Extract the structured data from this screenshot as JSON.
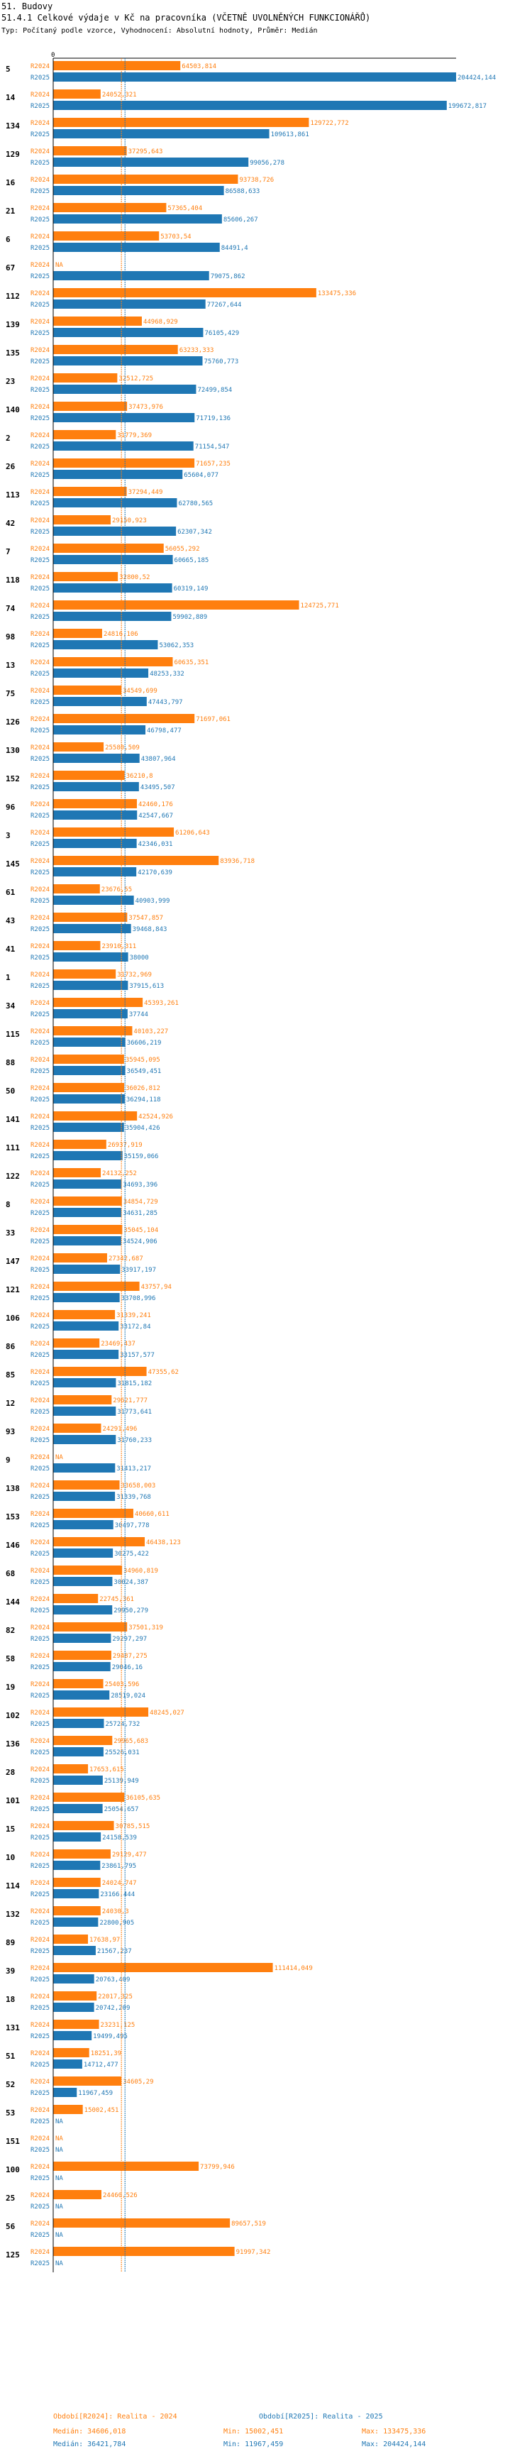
{
  "header": {
    "line1": "51. Budovy",
    "line2": "51.4.1 Celkové výdaje v Kč na pracovníka (VČETNĚ UVOLNĚNÝCH FUNKCIONÁŘŮ)",
    "line3": "Typ: Počítaný podle vzorce, Vyhodnocení: Absolutní hodnoty, Průměr: Medián"
  },
  "colors": {
    "r2024": "#ff7f0e",
    "r2025": "#1f77b4"
  },
  "chart_data": {
    "type": "bar",
    "orientation": "horizontal",
    "axis_zero_label": "0",
    "xlim": [
      0,
      204424.144
    ],
    "series": [
      {
        "name": "R2024",
        "label": "Období[R2024]: Realita - 2024"
      },
      {
        "name": "R2025",
        "label": "Období[R2025]: Realita - 2025"
      }
    ],
    "groups": [
      {
        "id": "5",
        "r2024": 64503.814,
        "r2024_label": "64503,814",
        "r2025": 204424.144,
        "r2025_label": "204424,144"
      },
      {
        "id": "14",
        "r2024": 24052.321,
        "r2024_label": "24052,321",
        "r2025": 199672.817,
        "r2025_label": "199672,817"
      },
      {
        "id": "134",
        "r2024": 129722.772,
        "r2024_label": "129722,772",
        "r2025": 109613.861,
        "r2025_label": "109613,861"
      },
      {
        "id": "129",
        "r2024": 37295.643,
        "r2024_label": "37295,643",
        "r2025": 99056.278,
        "r2025_label": "99056,278"
      },
      {
        "id": "16",
        "r2024": 93738.726,
        "r2024_label": "93738,726",
        "r2025": 86588.633,
        "r2025_label": "86588,633"
      },
      {
        "id": "21",
        "r2024": 57365.404,
        "r2024_label": "57365,404",
        "r2025": 85606.267,
        "r2025_label": "85606,267"
      },
      {
        "id": "6",
        "r2024": 53703.54,
        "r2024_label": "53703,54",
        "r2025": 84491.4,
        "r2025_label": "84491,4"
      },
      {
        "id": "67",
        "r2024": null,
        "r2024_label": "NA",
        "r2025": 79075.862,
        "r2025_label": "79075,862"
      },
      {
        "id": "112",
        "r2024": 133475.336,
        "r2024_label": "133475,336",
        "r2025": 77267.644,
        "r2025_label": "77267,644"
      },
      {
        "id": "139",
        "r2024": 44968.929,
        "r2024_label": "44968,929",
        "r2025": 76105.429,
        "r2025_label": "76105,429"
      },
      {
        "id": "135",
        "r2024": 63233.333,
        "r2024_label": "63233,333",
        "r2025": 75760.773,
        "r2025_label": "75760,773"
      },
      {
        "id": "23",
        "r2024": 32512.725,
        "r2024_label": "32512,725",
        "r2025": 72499.854,
        "r2025_label": "72499,854"
      },
      {
        "id": "140",
        "r2024": 37473.976,
        "r2024_label": "37473,976",
        "r2025": 71719.136,
        "r2025_label": "71719,136"
      },
      {
        "id": "2",
        "r2024": 31779.369,
        "r2024_label": "31779,369",
        "r2025": 71154.547,
        "r2025_label": "71154,547"
      },
      {
        "id": "26",
        "r2024": 71657.235,
        "r2024_label": "71657,235",
        "r2025": 65604.077,
        "r2025_label": "65604,077"
      },
      {
        "id": "113",
        "r2024": 37294.449,
        "r2024_label": "37294,449",
        "r2025": 62780.565,
        "r2025_label": "62780,565"
      },
      {
        "id": "42",
        "r2024": 29150.923,
        "r2024_label": "29150,923",
        "r2025": 62307.342,
        "r2025_label": "62307,342"
      },
      {
        "id": "7",
        "r2024": 56055.292,
        "r2024_label": "56055,292",
        "r2025": 60665.185,
        "r2025_label": "60665,185"
      },
      {
        "id": "118",
        "r2024": 32800.52,
        "r2024_label": "32800,52",
        "r2025": 60319.149,
        "r2025_label": "60319,149"
      },
      {
        "id": "74",
        "r2024": 124725.771,
        "r2024_label": "124725,771",
        "r2025": 59902.889,
        "r2025_label": "59902,889"
      },
      {
        "id": "98",
        "r2024": 24816.106,
        "r2024_label": "24816,106",
        "r2025": 53062.353,
        "r2025_label": "53062,353"
      },
      {
        "id": "13",
        "r2024": 60635.351,
        "r2024_label": "60635,351",
        "r2025": 48253.332,
        "r2025_label": "48253,332"
      },
      {
        "id": "75",
        "r2024": 34549.699,
        "r2024_label": "34549,699",
        "r2025": 47443.797,
        "r2025_label": "47443,797"
      },
      {
        "id": "126",
        "r2024": 71697.061,
        "r2024_label": "71697,061",
        "r2025": 46798.477,
        "r2025_label": "46798,477"
      },
      {
        "id": "130",
        "r2024": 25580.509,
        "r2024_label": "25580,509",
        "r2025": 43807.964,
        "r2025_label": "43807,964"
      },
      {
        "id": "152",
        "r2024": 36210.8,
        "r2024_label": "36210,8",
        "r2025": 43495.507,
        "r2025_label": "43495,507"
      },
      {
        "id": "96",
        "r2024": 42460.176,
        "r2024_label": "42460,176",
        "r2025": 42547.667,
        "r2025_label": "42547,667"
      },
      {
        "id": "3",
        "r2024": 61206.643,
        "r2024_label": "61206,643",
        "r2025": 42346.031,
        "r2025_label": "42346,031"
      },
      {
        "id": "145",
        "r2024": 83936.718,
        "r2024_label": "83936,718",
        "r2025": 42170.639,
        "r2025_label": "42170,639"
      },
      {
        "id": "61",
        "r2024": 23676.55,
        "r2024_label": "23676,55",
        "r2025": 40903.999,
        "r2025_label": "40903,999"
      },
      {
        "id": "43",
        "r2024": 37547.857,
        "r2024_label": "37547,857",
        "r2025": 39468.843,
        "r2025_label": "39468,843"
      },
      {
        "id": "41",
        "r2024": 23910.311,
        "r2024_label": "23910,311",
        "r2025": 38000,
        "r2025_label": "38000"
      },
      {
        "id": "1",
        "r2024": 31732.969,
        "r2024_label": "31732,969",
        "r2025": 37915.613,
        "r2025_label": "37915,613"
      },
      {
        "id": "34",
        "r2024": 45393.261,
        "r2024_label": "45393,261",
        "r2025": 37744,
        "r2025_label": "37744"
      },
      {
        "id": "115",
        "r2024": 40103.227,
        "r2024_label": "40103,227",
        "r2025": 36606.219,
        "r2025_label": "36606,219"
      },
      {
        "id": "88",
        "r2024": 35945.095,
        "r2024_label": "35945,095",
        "r2025": 36549.451,
        "r2025_label": "36549,451"
      },
      {
        "id": "50",
        "r2024": 36026.812,
        "r2024_label": "36026,812",
        "r2025": 36294.118,
        "r2025_label": "36294,118"
      },
      {
        "id": "141",
        "r2024": 42524.926,
        "r2024_label": "42524,926",
        "r2025": 35904.426,
        "r2025_label": "35904,426"
      },
      {
        "id": "111",
        "r2024": 26937.919,
        "r2024_label": "26937,919",
        "r2025": 35159.066,
        "r2025_label": "35159,066"
      },
      {
        "id": "122",
        "r2024": 24132.252,
        "r2024_label": "24132,252",
        "r2025": 34693.396,
        "r2025_label": "34693,396"
      },
      {
        "id": "8",
        "r2024": 34854.729,
        "r2024_label": "34854,729",
        "r2025": 34631.285,
        "r2025_label": "34631,285"
      },
      {
        "id": "33",
        "r2024": 35045.104,
        "r2024_label": "35045,104",
        "r2025": 34524.906,
        "r2025_label": "34524,906"
      },
      {
        "id": "147",
        "r2024": 27342.687,
        "r2024_label": "27342,687",
        "r2025": 33917.197,
        "r2025_label": "33917,197"
      },
      {
        "id": "121",
        "r2024": 43757.94,
        "r2024_label": "43757,94",
        "r2025": 33708.996,
        "r2025_label": "33708,996"
      },
      {
        "id": "106",
        "r2024": 31339.241,
        "r2024_label": "31339,241",
        "r2025": 33172.84,
        "r2025_label": "33172,84"
      },
      {
        "id": "86",
        "r2024": 23469.437,
        "r2024_label": "23469,437",
        "r2025": 33157.577,
        "r2025_label": "33157,577"
      },
      {
        "id": "85",
        "r2024": 47355.62,
        "r2024_label": "47355,62",
        "r2025": 31815.182,
        "r2025_label": "31815,182"
      },
      {
        "id": "12",
        "r2024": 29621.777,
        "r2024_label": "29621,777",
        "r2025": 31773.641,
        "r2025_label": "31773,641"
      },
      {
        "id": "93",
        "r2024": 24291.496,
        "r2024_label": "24291,496",
        "r2025": 31760.233,
        "r2025_label": "31760,233"
      },
      {
        "id": "9",
        "r2024": null,
        "r2024_label": "NA",
        "r2025": 31413.217,
        "r2025_label": "31413,217"
      },
      {
        "id": "138",
        "r2024": 33658.003,
        "r2024_label": "33658,003",
        "r2025": 31339.768,
        "r2025_label": "31339,768"
      },
      {
        "id": "153",
        "r2024": 40660.611,
        "r2024_label": "40660,611",
        "r2025": 30497.778,
        "r2025_label": "30497,778"
      },
      {
        "id": "146",
        "r2024": 46438.123,
        "r2024_label": "46438,123",
        "r2025": 30275.422,
        "r2025_label": "30275,422"
      },
      {
        "id": "68",
        "r2024": 34960.819,
        "r2024_label": "34960,819",
        "r2025": 30024.387,
        "r2025_label": "30024,387"
      },
      {
        "id": "144",
        "r2024": 22745.361,
        "r2024_label": "22745,361",
        "r2025": 29950.279,
        "r2025_label": "29950,279"
      },
      {
        "id": "82",
        "r2024": 37501.319,
        "r2024_label": "37501,319",
        "r2025": 29297.297,
        "r2025_label": "29297,297"
      },
      {
        "id": "58",
        "r2024": 29487.275,
        "r2024_label": "29487,275",
        "r2025": 29046.16,
        "r2025_label": "29046,16"
      },
      {
        "id": "19",
        "r2024": 25403.596,
        "r2024_label": "25403,596",
        "r2025": 28519.024,
        "r2025_label": "28519,024"
      },
      {
        "id": "102",
        "r2024": 48245.027,
        "r2024_label": "48245,027",
        "r2025": 25724.732,
        "r2025_label": "25724,732"
      },
      {
        "id": "136",
        "r2024": 29965.683,
        "r2024_label": "29965,683",
        "r2025": 25526.031,
        "r2025_label": "25526,031"
      },
      {
        "id": "28",
        "r2024": 17653.615,
        "r2024_label": "17653,615",
        "r2025": 25139.949,
        "r2025_label": "25139,949"
      },
      {
        "id": "101",
        "r2024": 36105.635,
        "r2024_label": "36105,635",
        "r2025": 25054.657,
        "r2025_label": "25054,657"
      },
      {
        "id": "15",
        "r2024": 30785.515,
        "r2024_label": "30785,515",
        "r2025": 24158.539,
        "r2025_label": "24158,539"
      },
      {
        "id": "10",
        "r2024": 29129.477,
        "r2024_label": "29129,477",
        "r2025": 23861.795,
        "r2025_label": "23861,795"
      },
      {
        "id": "114",
        "r2024": 24024.747,
        "r2024_label": "24024,747",
        "r2025": 23166.444,
        "r2025_label": "23166,444"
      },
      {
        "id": "132",
        "r2024": 24030.3,
        "r2024_label": "24030,3",
        "r2025": 22800.905,
        "r2025_label": "22800,905"
      },
      {
        "id": "89",
        "r2024": 17638.97,
        "r2024_label": "17638,97",
        "r2025": 21567.237,
        "r2025_label": "21567,237"
      },
      {
        "id": "39",
        "r2024": 111414.049,
        "r2024_label": "111414,049",
        "r2025": 20763.409,
        "r2025_label": "20763,409"
      },
      {
        "id": "18",
        "r2024": 22017.325,
        "r2024_label": "22017,325",
        "r2025": 20742.209,
        "r2025_label": "20742,209"
      },
      {
        "id": "131",
        "r2024": 23231.125,
        "r2024_label": "23231,125",
        "r2025": 19499.495,
        "r2025_label": "19499,495"
      },
      {
        "id": "51",
        "r2024": 18251.39,
        "r2024_label": "18251,39",
        "r2025": 14712.477,
        "r2025_label": "14712,477"
      },
      {
        "id": "52",
        "r2024": 34605.29,
        "r2024_label": "34605,29",
        "r2025": 11967.459,
        "r2025_label": "11967,459"
      },
      {
        "id": "53",
        "r2024": 15002.451,
        "r2024_label": "15002,451",
        "r2025": null,
        "r2025_label": "NA"
      },
      {
        "id": "151",
        "r2024": null,
        "r2024_label": "NA",
        "r2025": null,
        "r2025_label": "NA"
      },
      {
        "id": "100",
        "r2024": 73799.946,
        "r2024_label": "73799,946",
        "r2025": null,
        "r2025_label": "NA"
      },
      {
        "id": "25",
        "r2024": 24460.526,
        "r2024_label": "24460,526",
        "r2025": null,
        "r2025_label": "NA"
      },
      {
        "id": "56",
        "r2024": 89657.519,
        "r2024_label": "89657,519",
        "r2025": null,
        "r2025_label": "NA"
      },
      {
        "id": "125",
        "r2024": 91997.342,
        "r2024_label": "91997,342",
        "r2025": null,
        "r2025_label": "NA"
      }
    ],
    "reference_lines": [
      {
        "series": "R2024",
        "type": "median",
        "value": 34606.018
      },
      {
        "series": "R2025",
        "type": "median",
        "value": 36421.784
      }
    ],
    "stats": {
      "R2024": {
        "median": "Medián: 34606,018",
        "min": "Min: 15002,451",
        "max": "Max: 133475,336"
      },
      "R2025": {
        "median": "Medián: 36421,784",
        "min": "Min: 11967,459",
        "max": "Max: 204424,144"
      }
    }
  }
}
